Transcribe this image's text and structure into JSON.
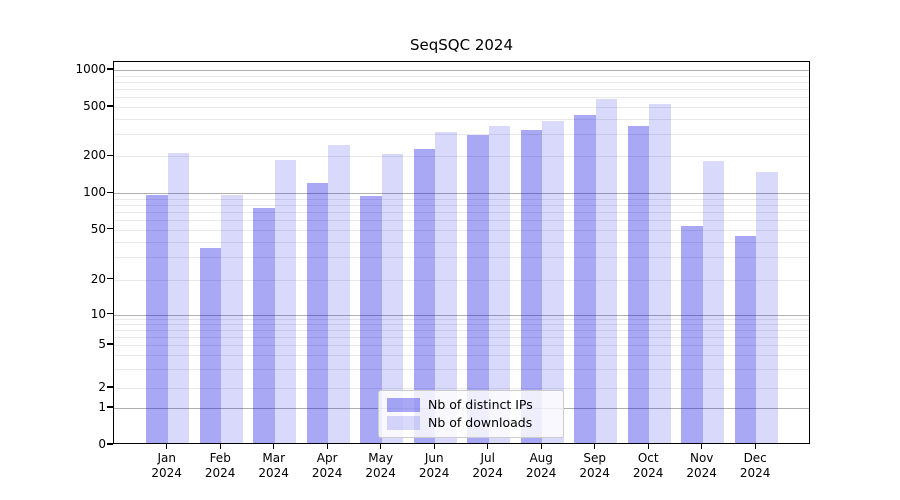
{
  "title": "SeqSQC 2024",
  "chart_data": {
    "type": "bar",
    "title": "SeqSQC 2024",
    "categories": [
      "Jan",
      "Feb",
      "Mar",
      "Apr",
      "May",
      "Jun",
      "Jul",
      "Aug",
      "Sep",
      "Oct",
      "Nov",
      "Dec"
    ],
    "year_label": "2024",
    "series": [
      {
        "name": "Nb of distinct IPs",
        "color": "rgba(0,0,225,0.34)",
        "values": [
          95,
          35,
          74,
          120,
          94,
          225,
          295,
          325,
          430,
          350,
          53,
          44
        ]
      },
      {
        "name": "Nb of downloads",
        "color": "rgba(0,0,225,0.15)",
        "values": [
          210,
          95,
          185,
          245,
          205,
          310,
          345,
          385,
          580,
          525,
          182,
          148
        ]
      }
    ],
    "y_axis": {
      "scale": "symlog",
      "tick_values": [
        0,
        1,
        2,
        5,
        10,
        20,
        50,
        100,
        200,
        500,
        1000
      ],
      "ylim": [
        0,
        1000
      ],
      "minor_gridlines": [
        2,
        3,
        4,
        5,
        6,
        7,
        8,
        9,
        20,
        30,
        40,
        50,
        60,
        70,
        80,
        90,
        200,
        300,
        400,
        500,
        600,
        700,
        800,
        900
      ],
      "major_gridlines": [
        1,
        10,
        100,
        1000
      ]
    },
    "legend": {
      "position": "lower-center",
      "entries": [
        "Nb of distinct IPs",
        "Nb of downloads"
      ]
    },
    "grid": true,
    "colors": {
      "major_grid": "#b0b0b0",
      "minor_grid": "#e9e9e9",
      "axis": "#000000"
    }
  }
}
